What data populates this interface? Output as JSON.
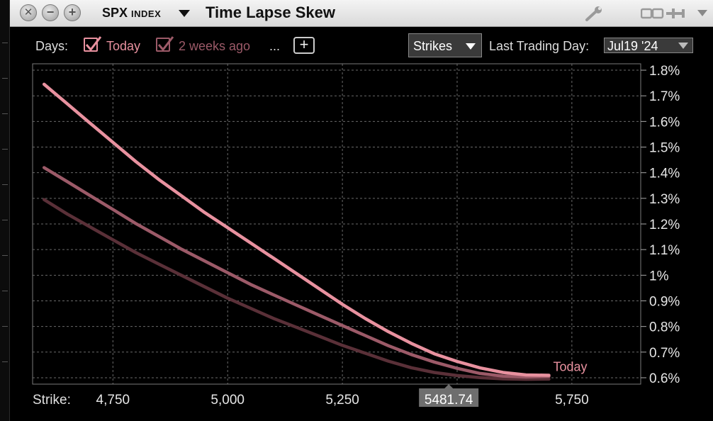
{
  "window": {
    "ticker": "SPX",
    "ticker_suffix": "INDEX",
    "title": "Time Lapse Skew"
  },
  "toolbar": {
    "days_label": "Days:",
    "days": [
      {
        "label": "Today",
        "color": "#e8919f",
        "checked": true
      },
      {
        "label": "2 weeks ago",
        "color": "#9c5a68",
        "checked": true
      }
    ],
    "more_label": "...",
    "add_label": "+",
    "mode_select": "Strikes",
    "last_trading_day_label": "Last Trading Day:",
    "last_trading_day_value": "Jul19 '24"
  },
  "colors": {
    "today": "#e8919f",
    "two_weeks": "#9c5a68",
    "third": "#5a3038",
    "grid": "#6a6a6a",
    "marker_bg": "#6e6e6e"
  },
  "chart_data": {
    "type": "line",
    "xlabel": "Strike:",
    "x_ticks": [
      4750,
      5000,
      5250,
      5500,
      5750
    ],
    "x_tick_labels": [
      "4,750",
      "5,000",
      "5,250",
      "",
      "5,750"
    ],
    "xlim": [
      4575,
      5900
    ],
    "ylim": [
      0.575,
      1.825
    ],
    "y_ticks": [
      0.6,
      0.7,
      0.8,
      0.9,
      1.0,
      1.1,
      1.2,
      1.3,
      1.4,
      1.5,
      1.6,
      1.7,
      1.8
    ],
    "y_tick_labels": [
      "0.6%",
      "0.7%",
      "0.8%",
      "0.9%",
      "1%",
      "1.1%",
      "1.2%",
      "1.3%",
      "1.4%",
      "1.5%",
      "1.6%",
      "1.7%",
      "1.8%"
    ],
    "current_marker": {
      "x": 5481.74,
      "label": "5481.74"
    },
    "end_label": "Today",
    "series": [
      {
        "name": "Today",
        "color": "#e8919f",
        "x": [
          4600,
          4650,
          4700,
          4750,
          4800,
          4850,
          4900,
          4950,
          5000,
          5050,
          5100,
          5150,
          5200,
          5250,
          5300,
          5350,
          5400,
          5450,
          5500,
          5550,
          5600,
          5650,
          5700
        ],
        "y": [
          1.745,
          1.67,
          1.595,
          1.52,
          1.445,
          1.375,
          1.31,
          1.245,
          1.185,
          1.125,
          1.065,
          1.005,
          0.945,
          0.885,
          0.83,
          0.78,
          0.735,
          0.695,
          0.665,
          0.64,
          0.622,
          0.612,
          0.61
        ]
      },
      {
        "series_index": 2,
        "color": "#9c5a68",
        "x": [
          4600,
          4650,
          4700,
          4750,
          4800,
          4850,
          4900,
          4950,
          5000,
          5050,
          5100,
          5150,
          5200,
          5250,
          5300,
          5350,
          5400,
          5450,
          5500,
          5550,
          5600,
          5650,
          5700
        ],
        "y": [
          1.42,
          1.365,
          1.31,
          1.255,
          1.2,
          1.15,
          1.1,
          1.055,
          1.01,
          0.965,
          0.925,
          0.885,
          0.845,
          0.805,
          0.765,
          0.725,
          0.69,
          0.66,
          0.635,
          0.615,
          0.605,
          0.602,
          0.605
        ]
      },
      {
        "series_index": 3,
        "color": "#5a3038",
        "x": [
          4600,
          4650,
          4700,
          4750,
          4800,
          4850,
          4900,
          4950,
          5000,
          5050,
          5100,
          5150,
          5200,
          5250,
          5300,
          5350,
          5400,
          5450,
          5500,
          5550,
          5600,
          5650,
          5700
        ],
        "y": [
          1.295,
          1.24,
          1.19,
          1.14,
          1.09,
          1.045,
          1.0,
          0.955,
          0.91,
          0.87,
          0.83,
          0.795,
          0.76,
          0.725,
          0.695,
          0.665,
          0.64,
          0.622,
          0.61,
          0.602,
          0.597,
          0.595,
          0.595
        ]
      }
    ]
  }
}
